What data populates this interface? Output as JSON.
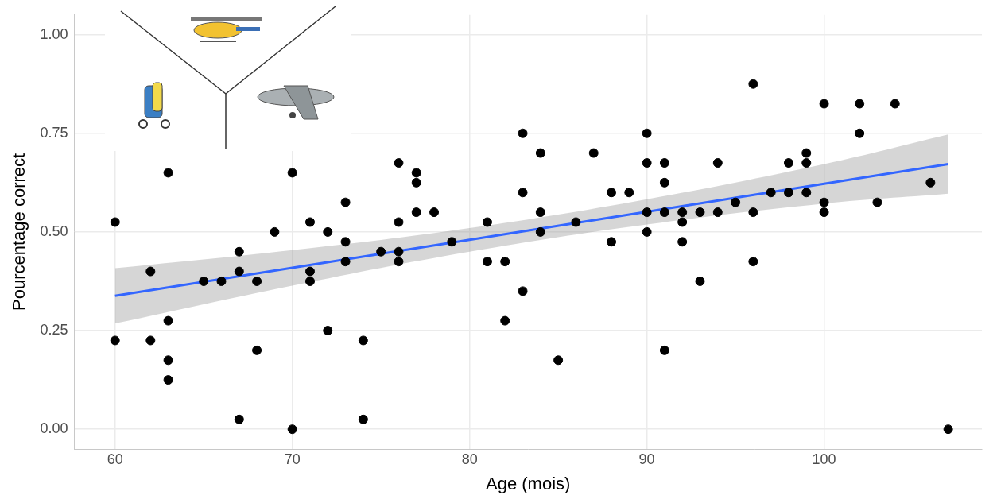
{
  "chart_data": {
    "type": "scatter",
    "x_label": "Age (mois)",
    "y_label": "Pourcentage correct",
    "xlim": [
      57.7,
      108.9
    ],
    "ylim": [
      -0.05,
      1.05
    ],
    "xticks": [
      60,
      70,
      80,
      90,
      100
    ],
    "yticks": [
      {
        "value": 0,
        "label": "0.00"
      },
      {
        "value": 0.25,
        "label": "0.25"
      },
      {
        "value": 0.5,
        "label": "0.50"
      },
      {
        "value": 0.75,
        "label": "0.75"
      },
      {
        "value": 1,
        "label": "1.00"
      }
    ],
    "grid": true,
    "color": "#000000",
    "marker": "circle",
    "x": [
      60,
      60,
      62,
      62,
      63,
      63,
      63,
      63,
      65,
      66,
      67,
      67,
      67,
      68,
      68,
      69,
      70,
      70,
      71,
      71,
      71,
      72,
      72,
      73,
      73,
      73,
      74,
      74,
      75,
      76,
      76,
      76,
      76,
      77,
      77,
      77,
      78,
      79,
      81,
      81,
      82,
      82,
      83,
      83,
      83,
      84,
      84,
      84,
      85,
      86,
      87,
      88,
      88,
      89,
      90,
      90,
      90,
      90,
      91,
      91,
      91,
      91,
      92,
      92,
      92,
      93,
      93,
      94,
      94,
      95,
      96,
      96,
      96,
      97,
      98,
      98,
      99,
      99,
      99,
      100,
      100,
      100,
      102,
      102,
      103,
      104,
      106,
      107
    ],
    "values": [
      0.525,
      0.225,
      0.4,
      0.225,
      0.65,
      0.275,
      0.175,
      0.125,
      0.375,
      0.375,
      0.45,
      0.4,
      0.025,
      0.375,
      0.2,
      0.5,
      0.65,
      0.0,
      0.525,
      0.4,
      0.375,
      0.5,
      0.25,
      0.575,
      0.475,
      0.425,
      0.225,
      0.025,
      0.45,
      0.675,
      0.525,
      0.45,
      0.425,
      0.65,
      0.625,
      0.55,
      0.55,
      0.475,
      0.525,
      0.425,
      0.425,
      0.275,
      0.75,
      0.6,
      0.35,
      0.7,
      0.55,
      0.5,
      0.175,
      0.525,
      0.7,
      0.6,
      0.475,
      0.6,
      0.75,
      0.675,
      0.55,
      0.5,
      0.675,
      0.625,
      0.55,
      0.2,
      0.55,
      0.525,
      0.475,
      0.55,
      0.375,
      0.675,
      0.55,
      0.575,
      0.875,
      0.55,
      0.425,
      0.6,
      0.675,
      0.6,
      0.7,
      0.675,
      0.6,
      0.825,
      0.575,
      0.55,
      0.825,
      0.75,
      0.575,
      0.825,
      0.625,
      0.0
    ],
    "fit": {
      "type": "line",
      "color": "#3366ff",
      "line_style": "solid",
      "x": [
        60,
        70,
        80,
        90,
        100,
        107
      ],
      "values": [
        0.338,
        0.409,
        0.48,
        0.551,
        0.622,
        0.672
      ],
      "lower": [
        0.268,
        0.364,
        0.45,
        0.519,
        0.572,
        0.597
      ],
      "upper": [
        0.408,
        0.454,
        0.51,
        0.583,
        0.672,
        0.747
      ],
      "band_color": "#999999"
    }
  }
}
